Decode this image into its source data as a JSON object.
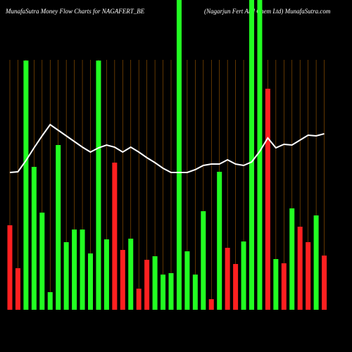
{
  "chart_data": {
    "type": "bar",
    "title": "MunafaSutra  Money Flow  Charts for NAGAFERT_BE",
    "subtitle": "(Nagarjun  Fert And Chem  Ltd) MunafaSutra.com",
    "ylim": [
      0,
      440
    ],
    "values": [
      120,
      59,
      354,
      203,
      138,
      25,
      234,
      96,
      114,
      114,
      80,
      354,
      100,
      209,
      85,
      101,
      30,
      71,
      76,
      50,
      52,
      440,
      83,
      50,
      140,
      15,
      196,
      88,
      65,
      97,
      440,
      440,
      314,
      72,
      66,
      144,
      118,
      96,
      134,
      77
    ],
    "colors": [
      "#ff2020",
      "#ff2020",
      "#22ff22",
      "#22ff22",
      "#22ff22",
      "#22ff22",
      "#22ff22",
      "#22ff22",
      "#22ff22",
      "#22ff22",
      "#22ff22",
      "#22ff22",
      "#22ff22",
      "#ff2020",
      "#ff2020",
      "#22ff22",
      "#ff2020",
      "#ff2020",
      "#22ff22",
      "#22ff22",
      "#22ff22",
      "#22ff22",
      "#22ff22",
      "#22ff22",
      "#22ff22",
      "#ff2020",
      "#22ff22",
      "#ff2020",
      "#ff2020",
      "#22ff22",
      "#22ff22",
      "#22ff22",
      "#ff2020",
      "#22ff22",
      "#ff2020",
      "#22ff22",
      "#ff2020",
      "#ff2020",
      "#22ff22",
      "#ff2020"
    ],
    "line": {
      "color": "#ffffff",
      "values": [
        195,
        196,
        212,
        230,
        247,
        263,
        255,
        247,
        239,
        231,
        224,
        230,
        234,
        231,
        224,
        231,
        224,
        216,
        209,
        201,
        195,
        195,
        195,
        199,
        205,
        207,
        207,
        213,
        207,
        205,
        210,
        225,
        244,
        230,
        235,
        234,
        241,
        248,
        247,
        250
      ]
    }
  }
}
